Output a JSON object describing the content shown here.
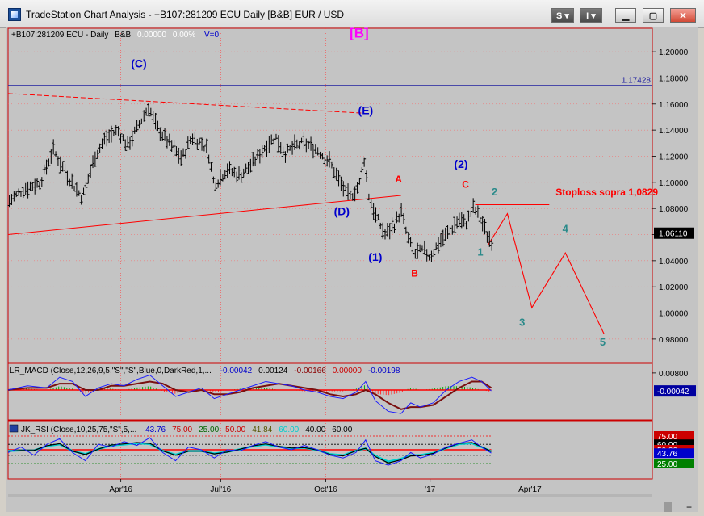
{
  "window": {
    "title": "TradeStation Chart Analysis - +B107:281209 ECU Daily [B&B] EUR / USD",
    "btn_s": "S",
    "btn_i": "I"
  },
  "colors": {
    "background": "#c4c4c4",
    "price_bars": "#000000",
    "wave_blue": "#0000cc",
    "wave_red": "#ff0000",
    "wave_teal": "#2a8a8a",
    "wave_magenta": "#ff00ff",
    "macd_line": "#1a1aff",
    "signal_line": "#7a1010",
    "hist_pos": "#00aa00",
    "hist_neg": "#ff3030",
    "rsi_line": "#1a1aff",
    "rsi_cyan": "#00d0d0"
  },
  "chart_data": [
    {
      "type": "line",
      "panel": "price",
      "header": {
        "symbol": "+B107:281209 ECU - Daily",
        "tag": "B&B",
        "change": "0.00000",
        "pct": "0.00%",
        "volume": "V=0"
      },
      "ylim": [
        0.962,
        1.218
      ],
      "yticks": [
        "1.20000",
        "1.18000",
        "1.16000",
        "1.14000",
        "1.12000",
        "1.10000",
        "1.08000",
        "1.06000",
        "1.04000",
        "1.02000",
        "1.00000",
        "0.98000"
      ],
      "xlim": [
        0,
        100
      ],
      "xticks": [
        {
          "x": 17.5,
          "label": "Apr'16"
        },
        {
          "x": 33.0,
          "label": "Jul'16"
        },
        {
          "x": 49.3,
          "label": "Oct'16"
        },
        {
          "x": 65.5,
          "label": "'17"
        },
        {
          "x": 81.0,
          "label": "Apr'17"
        }
      ],
      "price_path": [
        [
          0,
          1.085
        ],
        [
          2.5,
          1.095
        ],
        [
          5,
          1.1
        ],
        [
          7,
          1.125
        ],
        [
          9,
          1.107
        ],
        [
          11.5,
          1.088
        ],
        [
          13.5,
          1.12
        ],
        [
          15,
          1.133
        ],
        [
          17,
          1.14
        ],
        [
          18.5,
          1.128
        ],
        [
          20,
          1.141
        ],
        [
          21.8,
          1.158
        ],
        [
          23,
          1.143
        ],
        [
          25,
          1.13
        ],
        [
          27,
          1.118
        ],
        [
          28.5,
          1.135
        ],
        [
          30,
          1.13
        ],
        [
          31,
          1.125
        ],
        [
          32,
          1.098
        ],
        [
          34,
          1.11
        ],
        [
          36,
          1.105
        ],
        [
          38,
          1.115
        ],
        [
          40,
          1.128
        ],
        [
          41.5,
          1.135
        ],
        [
          43,
          1.122
        ],
        [
          44.5,
          1.128
        ],
        [
          46,
          1.13
        ],
        [
          48,
          1.125
        ],
        [
          50,
          1.115
        ],
        [
          51.5,
          1.1
        ],
        [
          53,
          1.088
        ],
        [
          54.5,
          1.098
        ],
        [
          55.3,
          1.118
        ],
        [
          56,
          1.09
        ],
        [
          57,
          1.075
        ],
        [
          58.5,
          1.06
        ],
        [
          60,
          1.068
        ],
        [
          61,
          1.078
        ],
        [
          62,
          1.058
        ],
        [
          63,
          1.045
        ],
        [
          64.5,
          1.048
        ],
        [
          65.5,
          1.043
        ],
        [
          67,
          1.055
        ],
        [
          68.5,
          1.062
        ],
        [
          70,
          1.072
        ],
        [
          71,
          1.068
        ],
        [
          72.3,
          1.081
        ],
        [
          73.5,
          1.07
        ],
        [
          74.5,
          1.058
        ],
        [
          75.3,
          1.054
        ]
      ],
      "hlines": [
        {
          "y": 1.17428,
          "label": "1.17428",
          "color": "#2020a0"
        },
        {
          "y": 1.0829,
          "x0": 72.5,
          "x1": 84,
          "color": "#ff0000"
        }
      ],
      "last_price": "1.06110",
      "last_price_y": 1.0611,
      "trendlines": [
        {
          "x0": 0,
          "y0": 1.168,
          "x1": 55,
          "y1": 1.153,
          "color": "#ff0000",
          "dashed": true
        },
        {
          "x0": 0,
          "y0": 1.06,
          "x1": 61,
          "y1": 1.09,
          "color": "#ff0000",
          "dashed": false
        }
      ],
      "projection": [
        [
          74.5,
          1.052
        ],
        [
          77.5,
          1.076
        ],
        [
          81.3,
          1.004
        ],
        [
          86.5,
          1.046
        ],
        [
          92.5,
          0.984
        ]
      ],
      "annotations": [
        {
          "text": "(C)",
          "x": 20.3,
          "y": 1.188,
          "color": "#0000cc",
          "size": 14
        },
        {
          "text": "[B]",
          "x": 54.5,
          "y": 1.211,
          "color": "#ff00ff",
          "size": 17
        },
        {
          "text": "(E)",
          "x": 55.5,
          "y": 1.152,
          "color": "#0000cc",
          "size": 14
        },
        {
          "text": "A",
          "x": 60.6,
          "y": 1.1,
          "color": "#ff0000",
          "size": 12
        },
        {
          "text": "(2)",
          "x": 70.3,
          "y": 1.111,
          "color": "#0000cc",
          "size": 14
        },
        {
          "text": "C",
          "x": 71,
          "y": 1.096,
          "color": "#ff0000",
          "size": 12
        },
        {
          "text": "2",
          "x": 75.5,
          "y": 1.09,
          "color": "#2a8a8a",
          "size": 13
        },
        {
          "text": "Stoploss sopra 1,0829",
          "x": 85,
          "y": 1.09,
          "color": "#ff0000",
          "size": 12,
          "bold": true
        },
        {
          "text": "(D)",
          "x": 51.8,
          "y": 1.075,
          "color": "#0000cc",
          "size": 14
        },
        {
          "text": "4",
          "x": 86.5,
          "y": 1.062,
          "color": "#2a8a8a",
          "size": 13
        },
        {
          "text": "1",
          "x": 73.3,
          "y": 1.044,
          "color": "#2a8a8a",
          "size": 13
        },
        {
          "text": "(1)",
          "x": 57,
          "y": 1.04,
          "color": "#0000cc",
          "size": 14
        },
        {
          "text": "B",
          "x": 63.1,
          "y": 1.028,
          "color": "#ff0000",
          "size": 12
        },
        {
          "text": "3",
          "x": 79.8,
          "y": 0.99,
          "color": "#2a8a8a",
          "size": 13
        },
        {
          "text": "5",
          "x": 92.3,
          "y": 0.975,
          "color": "#2a8a8a",
          "size": 13
        }
      ]
    },
    {
      "type": "line",
      "panel": "macd",
      "label": "LR_MACD (Close,12,26,9,5,\"S\",\"S\",Blue,0,DarkRed,1,...",
      "values": [
        {
          "text": "-0.00042",
          "color": "#0000cc"
        },
        {
          "text": "0.00124",
          "color": "#000000"
        },
        {
          "text": "-0.00166",
          "color": "#8b0000"
        },
        {
          "text": "0.00000",
          "color": "#cc0000"
        },
        {
          "text": "-0.00198",
          "color": "#0000cc"
        }
      ],
      "ylim": [
        -0.014,
        0.0125
      ],
      "yticks": [
        "0.00800"
      ],
      "current": "-0.00042",
      "current_y": -0.00042,
      "zero_y": 0,
      "macd": [
        [
          0,
          0.0
        ],
        [
          3,
          0.002
        ],
        [
          6,
          0.001
        ],
        [
          8,
          0.006
        ],
        [
          10,
          0.004
        ],
        [
          12,
          -0.003
        ],
        [
          14,
          0.001
        ],
        [
          16,
          0.003
        ],
        [
          18,
          0.002
        ],
        [
          20,
          0.005
        ],
        [
          22,
          0.007
        ],
        [
          24,
          0.002
        ],
        [
          26,
          -0.003
        ],
        [
          28,
          -0.001
        ],
        [
          30,
          0.001
        ],
        [
          32,
          -0.004
        ],
        [
          34,
          -0.002
        ],
        [
          36,
          0.0
        ],
        [
          38,
          0.002
        ],
        [
          40,
          0.004
        ],
        [
          42,
          0.003
        ],
        [
          44,
          0.002
        ],
        [
          46,
          0.0
        ],
        [
          48,
          -0.001
        ],
        [
          50,
          -0.003
        ],
        [
          52,
          -0.004
        ],
        [
          54,
          -0.001
        ],
        [
          55.5,
          0.004
        ],
        [
          57,
          -0.005
        ],
        [
          59,
          -0.01
        ],
        [
          61,
          -0.011
        ],
        [
          62.5,
          -0.006
        ],
        [
          64,
          -0.008
        ],
        [
          66,
          -0.006
        ],
        [
          68,
          0.0
        ],
        [
          70,
          0.004
        ],
        [
          72,
          0.006
        ],
        [
          73.5,
          0.004
        ],
        [
          75,
          -0.0004
        ]
      ],
      "signal": [
        [
          0,
          0.0
        ],
        [
          3,
          0.001
        ],
        [
          6,
          0.001
        ],
        [
          8,
          0.003
        ],
        [
          10,
          0.003
        ],
        [
          12,
          0.0
        ],
        [
          14,
          0.0
        ],
        [
          16,
          0.002
        ],
        [
          18,
          0.002
        ],
        [
          20,
          0.003
        ],
        [
          22,
          0.004
        ],
        [
          24,
          0.003
        ],
        [
          26,
          0.0
        ],
        [
          28,
          -0.001
        ],
        [
          30,
          0.0
        ],
        [
          32,
          -0.002
        ],
        [
          34,
          -0.002
        ],
        [
          36,
          -0.001
        ],
        [
          38,
          0.001
        ],
        [
          40,
          0.002
        ],
        [
          42,
          0.003
        ],
        [
          44,
          0.002
        ],
        [
          46,
          0.001
        ],
        [
          48,
          0.0
        ],
        [
          50,
          -0.002
        ],
        [
          52,
          -0.003
        ],
        [
          54,
          -0.002
        ],
        [
          55.5,
          0.0
        ],
        [
          57,
          -0.002
        ],
        [
          59,
          -0.006
        ],
        [
          61,
          -0.009
        ],
        [
          62.5,
          -0.008
        ],
        [
          64,
          -0.008
        ],
        [
          66,
          -0.007
        ],
        [
          68,
          -0.003
        ],
        [
          70,
          0.001
        ],
        [
          72,
          0.004
        ],
        [
          73.5,
          0.004
        ],
        [
          75,
          0.001
        ]
      ]
    },
    {
      "type": "line",
      "panel": "rsi",
      "label": "JK_RSI (Close,10,25,75,\"S\",5,...",
      "values": [
        {
          "text": "43.76",
          "color": "#0000cc"
        },
        {
          "text": "75.00",
          "color": "#cc0000"
        },
        {
          "text": "25.00",
          "color": "#006600"
        },
        {
          "text": "50.00",
          "color": "#cc0000"
        },
        {
          "text": "41.84",
          "color": "#555500"
        },
        {
          "text": "60.00",
          "color": "#00cccc"
        },
        {
          "text": "40.00",
          "color": "#000000"
        },
        {
          "text": "60.00",
          "color": "#000000"
        }
      ],
      "ylim": [
        0,
        100
      ],
      "levels": [
        {
          "y": 75,
          "label": "75.00",
          "color": "#cc0000"
        },
        {
          "y": 60,
          "label": "60.00",
          "color": "#000000"
        },
        {
          "y": 50,
          "label": "50.00",
          "color": "#cc0000"
        },
        {
          "y": 43.76,
          "label": "43.76",
          "color": "#0000cc"
        },
        {
          "y": 25,
          "label": "25.00",
          "color": "#008000"
        }
      ],
      "rsi": [
        [
          0,
          45
        ],
        [
          2,
          55
        ],
        [
          4,
          40
        ],
        [
          6,
          60
        ],
        [
          8,
          70
        ],
        [
          10,
          45
        ],
        [
          12,
          30
        ],
        [
          14,
          60
        ],
        [
          16,
          55
        ],
        [
          18,
          65
        ],
        [
          20,
          58
        ],
        [
          22,
          72
        ],
        [
          24,
          45
        ],
        [
          26,
          30
        ],
        [
          28,
          55
        ],
        [
          30,
          50
        ],
        [
          32,
          35
        ],
        [
          34,
          50
        ],
        [
          36,
          48
        ],
        [
          38,
          58
        ],
        [
          40,
          65
        ],
        [
          42,
          55
        ],
        [
          44,
          50
        ],
        [
          46,
          58
        ],
        [
          48,
          50
        ],
        [
          50,
          40
        ],
        [
          52,
          35
        ],
        [
          54,
          45
        ],
        [
          55.5,
          68
        ],
        [
          57,
          30
        ],
        [
          59,
          22
        ],
        [
          61,
          30
        ],
        [
          62.5,
          45
        ],
        [
          64,
          35
        ],
        [
          66,
          42
        ],
        [
          68,
          55
        ],
        [
          70,
          62
        ],
        [
          72,
          68
        ],
        [
          73.5,
          55
        ],
        [
          75,
          44
        ]
      ]
    }
  ]
}
